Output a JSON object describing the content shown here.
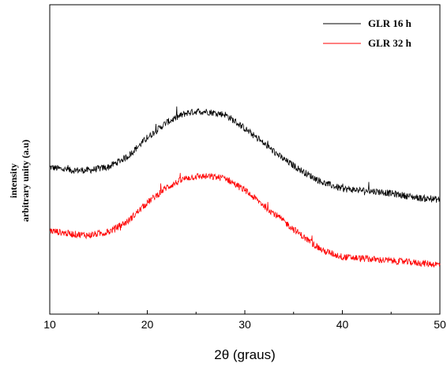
{
  "chart_data": {
    "type": "line",
    "xlabel": "2θ (graus)",
    "ylabel_lines": [
      "intensity",
      "arbitrary unity (a.u)"
    ],
    "xlim": [
      10,
      50
    ],
    "ylim": [
      0,
      1
    ],
    "y_ticks_labeled": false,
    "x_ticks": [
      10,
      20,
      30,
      40,
      50
    ],
    "grid": false,
    "legend_position": "top-right",
    "series": [
      {
        "name": "GLR 16 h",
        "color": "#000000",
        "x": [
          10,
          12,
          14,
          16,
          18,
          20,
          22,
          24,
          25,
          26,
          28,
          30,
          32,
          34,
          36,
          38,
          40,
          42,
          44,
          46,
          48,
          50
        ],
        "y": [
          0.475,
          0.465,
          0.465,
          0.475,
          0.51,
          0.57,
          0.62,
          0.65,
          0.655,
          0.655,
          0.645,
          0.6,
          0.55,
          0.5,
          0.46,
          0.425,
          0.405,
          0.4,
          0.395,
          0.385,
          0.375,
          0.37
        ]
      },
      {
        "name": "GLR 32 h",
        "color": "#ff0000",
        "x": [
          10,
          12,
          14,
          16,
          18,
          20,
          22,
          24,
          25,
          26,
          28,
          30,
          32,
          34,
          36,
          38,
          40,
          42,
          44,
          46,
          48,
          50
        ],
        "y": [
          0.27,
          0.26,
          0.255,
          0.265,
          0.3,
          0.36,
          0.41,
          0.44,
          0.445,
          0.445,
          0.44,
          0.4,
          0.35,
          0.3,
          0.25,
          0.205,
          0.185,
          0.18,
          0.175,
          0.17,
          0.165,
          0.16
        ]
      }
    ]
  }
}
